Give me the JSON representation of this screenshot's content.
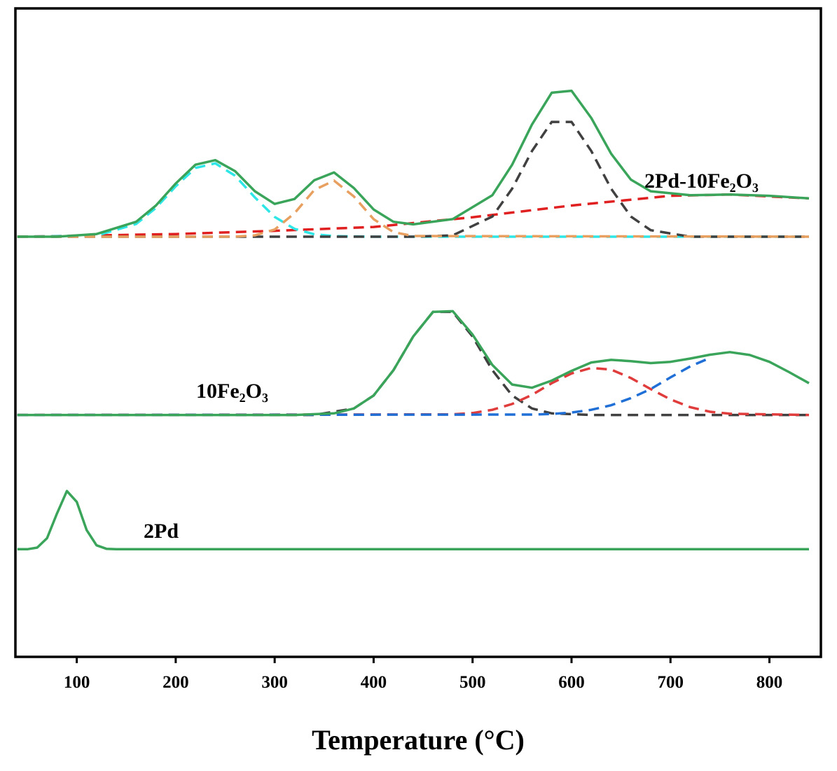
{
  "chart_data": {
    "type": "line",
    "x_label": "Temperature (°C)",
    "xlim": [
      38,
      852
    ],
    "xticks": [
      100,
      200,
      300,
      400,
      500,
      600,
      700,
      800
    ],
    "ylim": [
      0,
      100
    ],
    "series": [
      {
        "name": "2Pd-10Fe₂O₃",
        "color": "#3aa55a",
        "x": [
          40,
          80,
          120,
          160,
          180,
          200,
          220,
          240,
          260,
          280,
          300,
          320,
          340,
          360,
          380,
          400,
          420,
          440,
          480,
          520,
          540,
          560,
          580,
          600,
          620,
          640,
          660,
          680,
          720,
          760,
          800,
          840
        ],
        "values": [
          64.8,
          64.8,
          65.2,
          67.1,
          69.6,
          73.0,
          75.9,
          76.6,
          74.9,
          71.8,
          69.85,
          70.6,
          73.5,
          74.7,
          72.3,
          69.0,
          67.1,
          66.7,
          67.5,
          71.2,
          75.9,
          82.1,
          87.0,
          87.3,
          83.1,
          77.6,
          73.6,
          71.8,
          71.2,
          71.3,
          71.1,
          70.7
        ],
        "components": [
          {
            "color": "#e02020",
            "dashed": true,
            "x": [
              40,
              120,
              200,
              300,
              400,
              500,
              600,
              700,
              760,
              840
            ],
            "values": [
              64.8,
              65.0,
              65.2,
              65.7,
              66.3,
              67.8,
              69.6,
              71.1,
              71.3,
              70.7
            ]
          },
          {
            "color": "#2ee6e6",
            "dashed": true,
            "x": [
              40,
              120,
              160,
              180,
              200,
              220,
              240,
              260,
              280,
              300,
              320,
              340,
              360,
              400,
              840
            ],
            "values": [
              64.8,
              64.97,
              66.76,
              69.23,
              72.57,
              75.4,
              76.1,
              74.2,
              70.85,
              67.85,
              66.0,
              65.16,
              64.88,
              64.8,
              64.8
            ]
          },
          {
            "color": "#404040",
            "dashed": true,
            "x": [
              40,
              440,
              480,
              520,
              540,
              560,
              580,
              600,
              620,
              640,
              660,
              680,
              720,
              840
            ],
            "values": [
              64.8,
              64.8,
              65.0,
              67.9,
              72.2,
              78.0,
              82.5,
              82.5,
              78.0,
              72.2,
              67.9,
              65.8,
              64.8,
              64.8
            ]
          },
          {
            "color": "#e8a060",
            "dashed": true,
            "x": [
              40,
              260,
              280,
              300,
              320,
              340,
              360,
              380,
              400,
              420,
              440,
              840
            ],
            "values": [
              64.8,
              64.8,
              65.0,
              65.9,
              68.4,
              72.0,
              73.45,
              71.0,
              67.5,
              65.5,
              64.9,
              64.8
            ]
          }
        ]
      },
      {
        "name": "10Fe₂O₃",
        "color": "#3aa55a",
        "x": [
          40,
          200,
          320,
          360,
          380,
          400,
          420,
          440,
          460,
          480,
          500,
          520,
          540,
          560,
          580,
          600,
          620,
          640,
          660,
          680,
          700,
          720,
          740,
          760,
          780,
          800,
          820,
          840
        ],
        "values": [
          37.3,
          37.3,
          37.3,
          37.55,
          38.3,
          40.3,
          44.2,
          49.4,
          53.2,
          53.3,
          49.7,
          45.0,
          42.0,
          41.5,
          42.6,
          44.1,
          45.4,
          45.8,
          45.6,
          45.3,
          45.5,
          46.0,
          46.6,
          47.0,
          46.55,
          45.5,
          43.9,
          42.2
        ],
        "components": [
          {
            "color": "#404040",
            "dashed": true,
            "x": [
              40,
              340,
              380,
              400,
              420,
              440,
              460,
              480,
              500,
              520,
              540,
              560,
              580,
              620,
              840
            ],
            "values": [
              37.3,
              37.3,
              38.3,
              40.3,
              44.2,
              49.4,
              53.2,
              53.2,
              49.4,
              44.2,
              40.3,
              38.3,
              37.55,
              37.3,
              37.3
            ]
          },
          {
            "color": "#e03c3c",
            "dashed": true,
            "x": [
              40,
              480,
              500,
              520,
              540,
              560,
              580,
              600,
              620,
              640,
              660,
              680,
              700,
              720,
              740,
              760,
              840
            ],
            "values": [
              37.3,
              37.4,
              37.6,
              38.1,
              39.0,
              40.4,
              42.2,
              43.7,
              44.56,
              44.3,
              43.0,
              41.3,
              39.7,
              38.5,
              37.8,
              37.5,
              37.3
            ]
          },
          {
            "color": "#1f6fd6",
            "dashed": true,
            "x": [
              40,
              560,
              580,
              600,
              620,
              640,
              660,
              680,
              700,
              720,
              740
            ],
            "values": [
              37.3,
              37.37,
              37.46,
              37.68,
              38.1,
              38.8,
              39.9,
              41.3,
              43.1,
              44.8,
              46.1
            ]
          }
        ]
      },
      {
        "name": "2Pd",
        "color": "#3aa55a",
        "x": [
          40,
          50,
          60,
          70,
          80,
          90,
          100,
          110,
          120,
          130,
          140,
          200,
          840
        ],
        "values": [
          16.6,
          16.6,
          16.85,
          18.3,
          22.1,
          25.57,
          23.9,
          19.56,
          17.2,
          16.66,
          16.6,
          16.6,
          16.6
        ],
        "components": []
      }
    ]
  }
}
